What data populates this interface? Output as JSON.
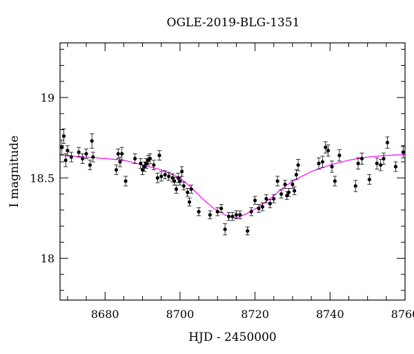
{
  "chart_data": {
    "type": "scatter",
    "title": "OGLE-2019-BLG-1351",
    "xlabel": "HJD - 2450000",
    "ylabel": "I magnitude",
    "xlim": [
      8668,
      8760
    ],
    "ylim": [
      19.34,
      17.74
    ],
    "y_inverted": true,
    "x_ticks": [
      8680,
      8700,
      8720,
      8740,
      8760
    ],
    "x_tick_labels": [
      "8680",
      "8700",
      "8720",
      "8740",
      "8760"
    ],
    "y_ticks": [
      18,
      18.5,
      19
    ],
    "y_tick_labels": [
      "18",
      "18.5",
      "19"
    ],
    "grid": false,
    "legend": "none",
    "colors": {
      "points": "#000000",
      "model": "#ff00ff",
      "axes": "#000000"
    },
    "series": [
      {
        "kind": "points_with_errorbars",
        "x": [
          8668.5,
          8669,
          8669.5,
          8670,
          8671,
          8673,
          8674,
          8675,
          8676,
          8676.5,
          8676.8,
          8683,
          8683.5,
          8684,
          8684.5,
          8685.5,
          8688,
          8689.5,
          8690,
          8690.5,
          8691,
          8691.5,
          8692,
          8693,
          8694,
          8694.5,
          8695,
          8696,
          8697,
          8698,
          8698.5,
          8699,
          8699.5,
          8700,
          8700.5,
          8701,
          8702,
          8702.5,
          8703,
          8705,
          8708,
          8710,
          8711,
          8712,
          8713,
          8714,
          8715,
          8716,
          8718,
          8719,
          8720,
          8721,
          8722,
          8723,
          8724,
          8725,
          8726,
          8727,
          8728,
          8728.5,
          8729,
          8730,
          8730.5,
          8731,
          8731.5,
          8737,
          8738,
          8738.8,
          8739.5,
          8740.5,
          8741.3,
          8742.5,
          8746.8,
          8747.5,
          8748.5,
          8750.5,
          8752.5,
          8753.5,
          8754.3,
          8755.3,
          8757.5,
          8759.5
        ],
        "y": [
          18.69,
          18.76,
          18.61,
          18.67,
          18.63,
          18.66,
          18.62,
          18.65,
          18.58,
          18.73,
          18.63,
          18.55,
          18.65,
          18.6,
          18.65,
          18.48,
          18.62,
          18.59,
          18.55,
          18.57,
          18.59,
          18.61,
          18.62,
          18.58,
          18.5,
          18.64,
          18.51,
          18.52,
          18.51,
          18.5,
          18.48,
          18.43,
          18.5,
          18.48,
          18.54,
          18.45,
          18.41,
          18.35,
          18.43,
          18.29,
          18.27,
          18.29,
          18.31,
          18.18,
          18.26,
          18.26,
          18.27,
          18.27,
          18.17,
          18.29,
          18.36,
          18.31,
          18.32,
          18.37,
          18.34,
          18.37,
          18.48,
          18.4,
          18.46,
          18.39,
          18.41,
          18.46,
          18.42,
          18.52,
          18.58,
          18.59,
          18.6,
          18.69,
          18.67,
          18.57,
          18.48,
          18.64,
          18.45,
          18.59,
          18.62,
          18.49,
          18.59,
          18.58,
          18.62,
          18.72,
          18.57,
          18.66
        ],
        "yerr": [
          0.045,
          0.045,
          0.04,
          0.03,
          0.03,
          0.03,
          0.03,
          0.03,
          0.03,
          0.045,
          0.03,
          0.03,
          0.03,
          0.03,
          0.04,
          0.03,
          0.03,
          0.03,
          0.03,
          0.03,
          0.03,
          0.03,
          0.03,
          0.03,
          0.03,
          0.03,
          0.03,
          0.025,
          0.025,
          0.025,
          0.025,
          0.025,
          0.03,
          0.025,
          0.03,
          0.025,
          0.025,
          0.025,
          0.025,
          0.025,
          0.025,
          0.025,
          0.025,
          0.035,
          0.025,
          0.025,
          0.025,
          0.025,
          0.025,
          0.025,
          0.025,
          0.025,
          0.025,
          0.025,
          0.025,
          0.025,
          0.03,
          0.025,
          0.025,
          0.025,
          0.025,
          0.025,
          0.025,
          0.03,
          0.035,
          0.035,
          0.035,
          0.035,
          0.035,
          0.035,
          0.03,
          0.035,
          0.035,
          0.035,
          0.035,
          0.03,
          0.035,
          0.035,
          0.035,
          0.035,
          0.03,
          0.035
        ]
      },
      {
        "kind": "model_curve",
        "x": [
          8668,
          8675,
          8680,
          8685,
          8690,
          8695,
          8700,
          8703,
          8706,
          8709,
          8712,
          8714,
          8715,
          8716,
          8718,
          8721,
          8724,
          8727,
          8730,
          8735,
          8740,
          8745,
          8750,
          8755,
          8760
        ],
        "y": [
          18.64,
          18.63,
          18.62,
          18.61,
          18.58,
          18.55,
          18.5,
          18.44,
          18.37,
          18.31,
          18.27,
          18.255,
          18.25,
          18.26,
          18.28,
          18.32,
          18.37,
          18.43,
          18.48,
          18.54,
          18.58,
          18.61,
          18.63,
          18.64,
          18.645
        ]
      }
    ]
  }
}
